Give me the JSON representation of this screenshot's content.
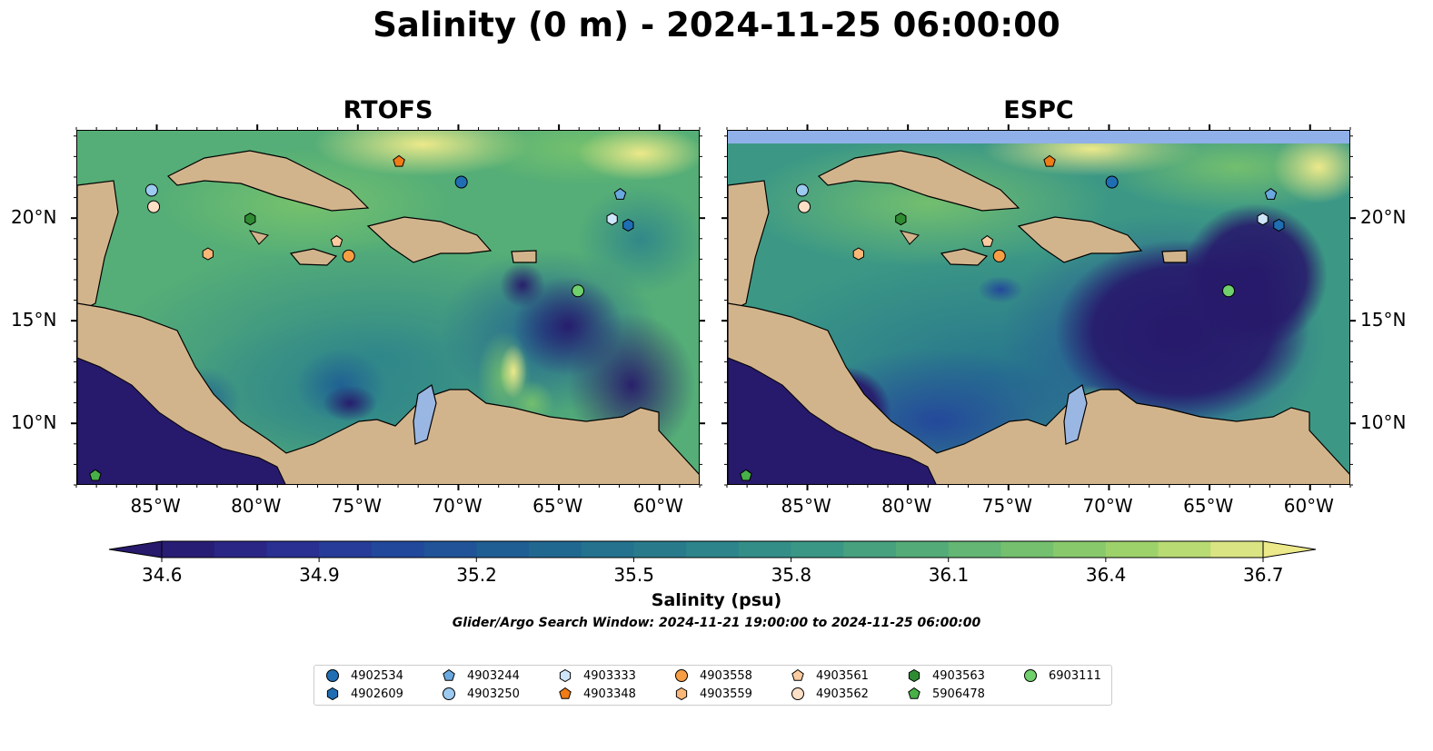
{
  "title": "Salinity (0 m) - 2024-11-25 06:00:00",
  "panels": [
    {
      "title": "RTOFS"
    },
    {
      "title": "ESPC"
    }
  ],
  "axes": {
    "lon_ticks": [
      "85°W",
      "80°W",
      "75°W",
      "70°W",
      "65°W",
      "60°W"
    ],
    "lat_ticks": [
      "20°N",
      "15°N",
      "10°N"
    ],
    "lon_range": [
      -89,
      -58
    ],
    "lat_range": [
      7,
      24.3
    ]
  },
  "colorbar": {
    "label": "Salinity (psu)",
    "ticks": [
      "34.6",
      "34.9",
      "35.2",
      "35.5",
      "35.8",
      "36.1",
      "36.4",
      "36.7"
    ],
    "range": [
      34.6,
      36.7
    ],
    "colormap": [
      "#27196b",
      "#2b2b8f",
      "#23459c",
      "#1e5c94",
      "#24718e",
      "#2d848b",
      "#3c9885",
      "#55ae77",
      "#79c36c",
      "#a5d66b",
      "#ece98a"
    ],
    "extend": "both"
  },
  "search_window": "Glider/Argo Search Window: 2024-11-21 19:00:00 to 2024-11-25 06:00:00",
  "colors": {
    "land": "#d2b48c",
    "lakes": "#9ab6e2",
    "rivers": "#a8bcd6",
    "no_data": "#8fb0e8"
  },
  "legend": [
    {
      "id": "4902534",
      "marker": "circle",
      "color": "#1f6eb4"
    },
    {
      "id": "4902609",
      "marker": "hexagon",
      "color": "#1f6eb4"
    },
    {
      "id": "4903244",
      "marker": "pentagon",
      "color": "#6aa8e0"
    },
    {
      "id": "4903250",
      "marker": "circle",
      "color": "#9ccaf0"
    },
    {
      "id": "4903333",
      "marker": "hexagon",
      "color": "#cfe6fa"
    },
    {
      "id": "4903348",
      "marker": "pentagon",
      "color": "#f07c16"
    },
    {
      "id": "4903558",
      "marker": "circle",
      "color": "#f79e45"
    },
    {
      "id": "4903559",
      "marker": "hexagon",
      "color": "#fab777"
    },
    {
      "id": "4903561",
      "marker": "pentagon",
      "color": "#fccca0"
    },
    {
      "id": "4903562",
      "marker": "circle",
      "color": "#fde0c6"
    },
    {
      "id": "4903563",
      "marker": "hexagon",
      "color": "#2e8b32"
    },
    {
      "id": "5906478",
      "marker": "pentagon",
      "color": "#48b048"
    },
    {
      "id": "6903111",
      "marker": "circle",
      "color": "#6fd06c"
    }
  ],
  "floats": [
    {
      "id": "4902534",
      "lon": -69.9,
      "lat": 21.8
    },
    {
      "id": "4902609",
      "lon": -61.6,
      "lat": 19.7
    },
    {
      "id": "4903244",
      "lon": -62.0,
      "lat": 21.2
    },
    {
      "id": "4903250",
      "lon": -85.3,
      "lat": 21.4
    },
    {
      "id": "4903333",
      "lon": -62.4,
      "lat": 20.0
    },
    {
      "id": "4903348",
      "lon": -73.0,
      "lat": 22.8
    },
    {
      "id": "4903558",
      "lon": -75.5,
      "lat": 18.2
    },
    {
      "id": "4903559",
      "lon": -82.5,
      "lat": 18.3
    },
    {
      "id": "4903561",
      "lon": -76.1,
      "lat": 18.9
    },
    {
      "id": "4903562",
      "lon": -85.2,
      "lat": 20.6
    },
    {
      "id": "4903563",
      "lon": -80.4,
      "lat": 20.0
    },
    {
      "id": "5906478",
      "lon": -88.1,
      "lat": 7.5
    },
    {
      "id": "6903111",
      "lon": -64.1,
      "lat": 16.5
    }
  ]
}
